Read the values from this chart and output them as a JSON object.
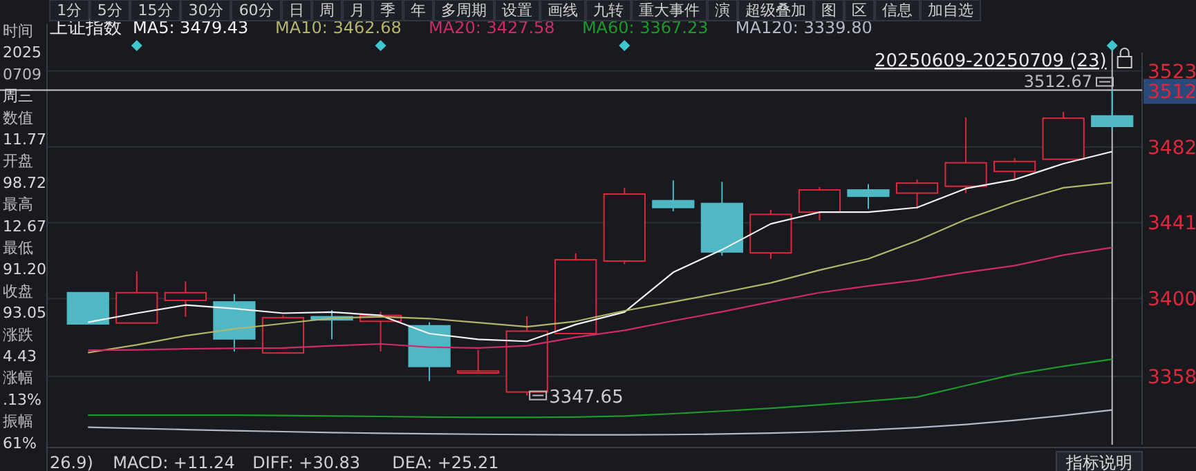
{
  "chart_data": [
    {
      "type": "candlestick",
      "title": "上证指数",
      "categories": [
        null,
        null,
        null,
        null,
        null,
        null,
        null,
        null,
        null,
        null,
        null,
        null,
        null,
        null,
        null,
        null,
        null,
        null,
        null,
        null,
        null,
        null
      ],
      "ohlc": [
        [
          3403.2,
          3403.2,
          3386.3,
          3386.3
        ],
        [
          3386.8,
          3414.7,
          3386.8,
          3403.2
        ],
        [
          3399.0,
          3409.3,
          3390.2,
          3403.2
        ],
        [
          3398.2,
          3402.4,
          3371.4,
          3378.2
        ],
        [
          3370.6,
          3390.9,
          3370.6,
          3389.7
        ],
        [
          3390.2,
          3393.8,
          3378.0,
          3388.5
        ],
        [
          3387.7,
          3392.9,
          3371.4,
          3390.9
        ],
        [
          3385.3,
          3387.2,
          3355.4,
          3363.3
        ],
        [
          3359.8,
          3372.3,
          3359.8,
          3360.8
        ],
        [
          3349.5,
          3390.5,
          3347.65,
          3382.4
        ],
        [
          3381.1,
          3424.5,
          3381.1,
          3421.0
        ],
        [
          3420.3,
          3459.9,
          3418.6,
          3456.5
        ],
        [
          3452.9,
          3463.9,
          3447.2,
          3449.2
        ],
        [
          3451.4,
          3463.1,
          3423.2,
          3425.2
        ],
        [
          3424.7,
          3448.0,
          3421.5,
          3445.5
        ],
        [
          3446.7,
          3460.2,
          3442.3,
          3458.7
        ],
        [
          3458.7,
          3461.9,
          3448.5,
          3455.3
        ],
        [
          3457.0,
          3464.3,
          3448.5,
          3462.4
        ],
        [
          3460.7,
          3497.9,
          3457.0,
          3473.4
        ],
        [
          3468.7,
          3475.9,
          3464.3,
          3474.1
        ],
        [
          3475.3,
          3501.0,
          3475.3,
          3497.48
        ],
        [
          3498.72,
          3512.67,
          3491.2,
          3493.05
        ]
      ],
      "colors": [
        "#4fb8c4",
        "#e0283c",
        "#e0283c",
        "#4fb8c4",
        "#e0283c",
        "#4fb8c4",
        "#e0283c",
        "#4fb8c4",
        "#e0283c",
        "#e0283c",
        "#e0283c",
        "#e0283c",
        "#4fb8c4",
        "#4fb8c4",
        "#e0283c",
        "#e0283c",
        "#4fb8c4",
        "#e0283c",
        "#e0283c",
        "#e0283c",
        "#e0283c",
        "#4fb8c4"
      ],
      "series": [
        {
          "type": "line",
          "name": "MA5: 3479.43",
          "color": "#f2f2f2",
          "values": [
            3387.2,
            3392.1,
            3396.5,
            3394.6,
            3392.1,
            3392.7,
            3390.9,
            3381.1,
            3378.0,
            3376.9,
            3386.0,
            3392.7,
            3414.2,
            3426.4,
            3440.4,
            3446.7,
            3446.7,
            3449.2,
            3459.5,
            3464.3,
            3472.9,
            3479.43
          ]
        },
        {
          "type": "line",
          "name": "MA10: 3462.68",
          "color": "#b5b56a",
          "values": [
            3370.8,
            3375.0,
            3379.9,
            3383.6,
            3386.5,
            3389.4,
            3390.2,
            3389.2,
            3387.0,
            3384.8,
            3387.7,
            3393.4,
            3398.2,
            3403.2,
            3408.5,
            3415.4,
            3421.5,
            3431.3,
            3442.8,
            3452.1,
            3459.9,
            3462.68
          ]
        },
        {
          "type": "line",
          "name": "MA20: 3427.58",
          "color": "#d02a6a",
          "values": [
            3372.1,
            3372.3,
            3372.8,
            3373.1,
            3373.3,
            3374.5,
            3375.5,
            3373.8,
            3373.3,
            3374.5,
            3379.1,
            3382.8,
            3388.0,
            3392.9,
            3398.2,
            3403.2,
            3406.8,
            3410.0,
            3414.2,
            3417.8,
            3423.5,
            3427.58
          ]
        },
        {
          "type": "line",
          "name": "MA60: 3367.23",
          "color": "#1f9a2a",
          "values": [
            3337.0,
            3337.0,
            3337.0,
            3337.0,
            3336.8,
            3336.5,
            3336.3,
            3336.0,
            3335.8,
            3335.8,
            3336.0,
            3336.5,
            3337.8,
            3339.2,
            3340.7,
            3342.6,
            3344.6,
            3346.8,
            3353.0,
            3359.1,
            3363.4,
            3367.23
          ]
        },
        {
          "type": "line",
          "name": "MA120: 3339.80",
          "color": "#b4b8c4",
          "values": [
            3330.5,
            3329.8,
            3329.2,
            3328.6,
            3328.1,
            3327.6,
            3327.2,
            3326.9,
            3326.7,
            3326.5,
            3326.4,
            3326.4,
            3326.5,
            3326.8,
            3327.3,
            3328.0,
            3329.0,
            3330.3,
            3332.0,
            3334.2,
            3336.8,
            3339.8
          ]
        }
      ],
      "ylim": [
        3321,
        3533
      ],
      "yticks": [
        3358,
        3400,
        3441,
        3482,
        3512,
        3523
      ],
      "grid": "y",
      "legend": "top left",
      "ref_lines": [
        {
          "axis": "y",
          "value": 3512.67,
          "label": "3512.67",
          "color": "#cccccc"
        }
      ],
      "annotations": [
        "20250609-20250709 (23)",
        "3347.65",
        "26.9)",
        "MACD: +11.24",
        "DIFF: +30.83",
        "DEA: +25.21",
        "指标说明"
      ]
    },
    {
      "type": "other",
      "annotations": [
        "时间",
        "2025",
        "0709",
        "周三",
        "数值",
        "11.77",
        "开盘",
        "98.72",
        "最高",
        "12.67",
        "最低",
        "91.20",
        "收盘",
        "93.05",
        "涨跌",
        "4.43",
        "涨幅",
        ".13%",
        "振幅",
        "61%"
      ]
    },
    {
      "type": "other",
      "annotations": [
        "1分",
        "5分",
        "15分",
        "30分",
        "60分",
        "日",
        "周",
        "月",
        "季",
        "年",
        "多周期",
        "设置",
        "画线",
        "九转",
        "重大事件",
        "演",
        "超级叠加",
        "图",
        "区",
        "信息",
        "加自选"
      ]
    }
  ]
}
